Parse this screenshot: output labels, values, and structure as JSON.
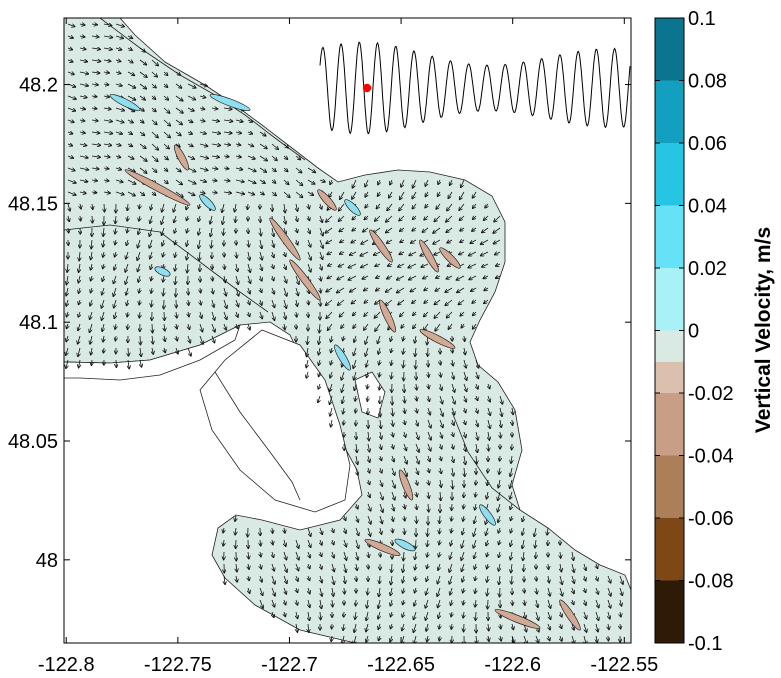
{
  "chart_data": {
    "type": "heatmap",
    "title": "",
    "xlabel": "",
    "ylabel": "",
    "xlim": [
      -122.801,
      -122.547
    ],
    "ylim": [
      47.965,
      48.228
    ],
    "x_ticks": [
      {
        "value": -122.8,
        "label": "-122.8"
      },
      {
        "value": -122.75,
        "label": "-122.75"
      },
      {
        "value": -122.7,
        "label": "-122.7"
      },
      {
        "value": -122.65,
        "label": "-122.65"
      },
      {
        "value": -122.6,
        "label": "-122.6"
      },
      {
        "value": -122.55,
        "label": "-122.55"
      }
    ],
    "y_ticks": [
      {
        "value": 48.0,
        "label": "48"
      },
      {
        "value": 48.05,
        "label": "48.05"
      },
      {
        "value": 48.1,
        "label": "48.1"
      },
      {
        "value": 48.15,
        "label": "48.15"
      },
      {
        "value": 48.2,
        "label": "48.2"
      }
    ],
    "colorbar": {
      "title": "Vertical Velocity, m/s",
      "range": [
        -0.1,
        0.1
      ],
      "ticks": [
        {
          "value": 0.1,
          "label": "0.1"
        },
        {
          "value": 0.08,
          "label": "0.08"
        },
        {
          "value": 0.06,
          "label": "0.06"
        },
        {
          "value": 0.04,
          "label": "0.04"
        },
        {
          "value": 0.02,
          "label": "0.02"
        },
        {
          "value": 0.0,
          "label": "0"
        },
        {
          "value": -0.02,
          "label": "-0.02"
        },
        {
          "value": -0.04,
          "label": "-0.04"
        },
        {
          "value": -0.06,
          "label": "-0.06"
        },
        {
          "value": -0.08,
          "label": "-0.08"
        },
        {
          "value": -0.1,
          "label": "-0.1"
        }
      ],
      "bands": [
        {
          "from": 0.08,
          "to": 0.1,
          "color": "#0b7591"
        },
        {
          "from": 0.06,
          "to": 0.08,
          "color": "#139fc0"
        },
        {
          "from": 0.04,
          "to": 0.06,
          "color": "#26c5e4"
        },
        {
          "from": 0.02,
          "to": 0.04,
          "color": "#66e2f6"
        },
        {
          "from": 0.0,
          "to": 0.02,
          "color": "#a8f1f6"
        },
        {
          "from": -0.01,
          "to": 0.0,
          "color": "#d9eae5"
        },
        {
          "from": -0.02,
          "to": -0.01,
          "color": "#dcc0ae"
        },
        {
          "from": -0.04,
          "to": -0.02,
          "color": "#c99e86"
        },
        {
          "from": -0.06,
          "to": -0.04,
          "color": "#ad7f59"
        },
        {
          "from": -0.08,
          "to": -0.06,
          "color": "#7e4716"
        },
        {
          "from": -0.1,
          "to": -0.08,
          "color": "#2f1907"
        }
      ]
    },
    "background_color": "#d9eae5",
    "negative_color": "#d1a994",
    "positive_color": "#8fdff1",
    "marker_color": "#ff0000",
    "grid": false,
    "inset": "tidal time series with current-time marker",
    "overlay": "velocity vector field"
  }
}
